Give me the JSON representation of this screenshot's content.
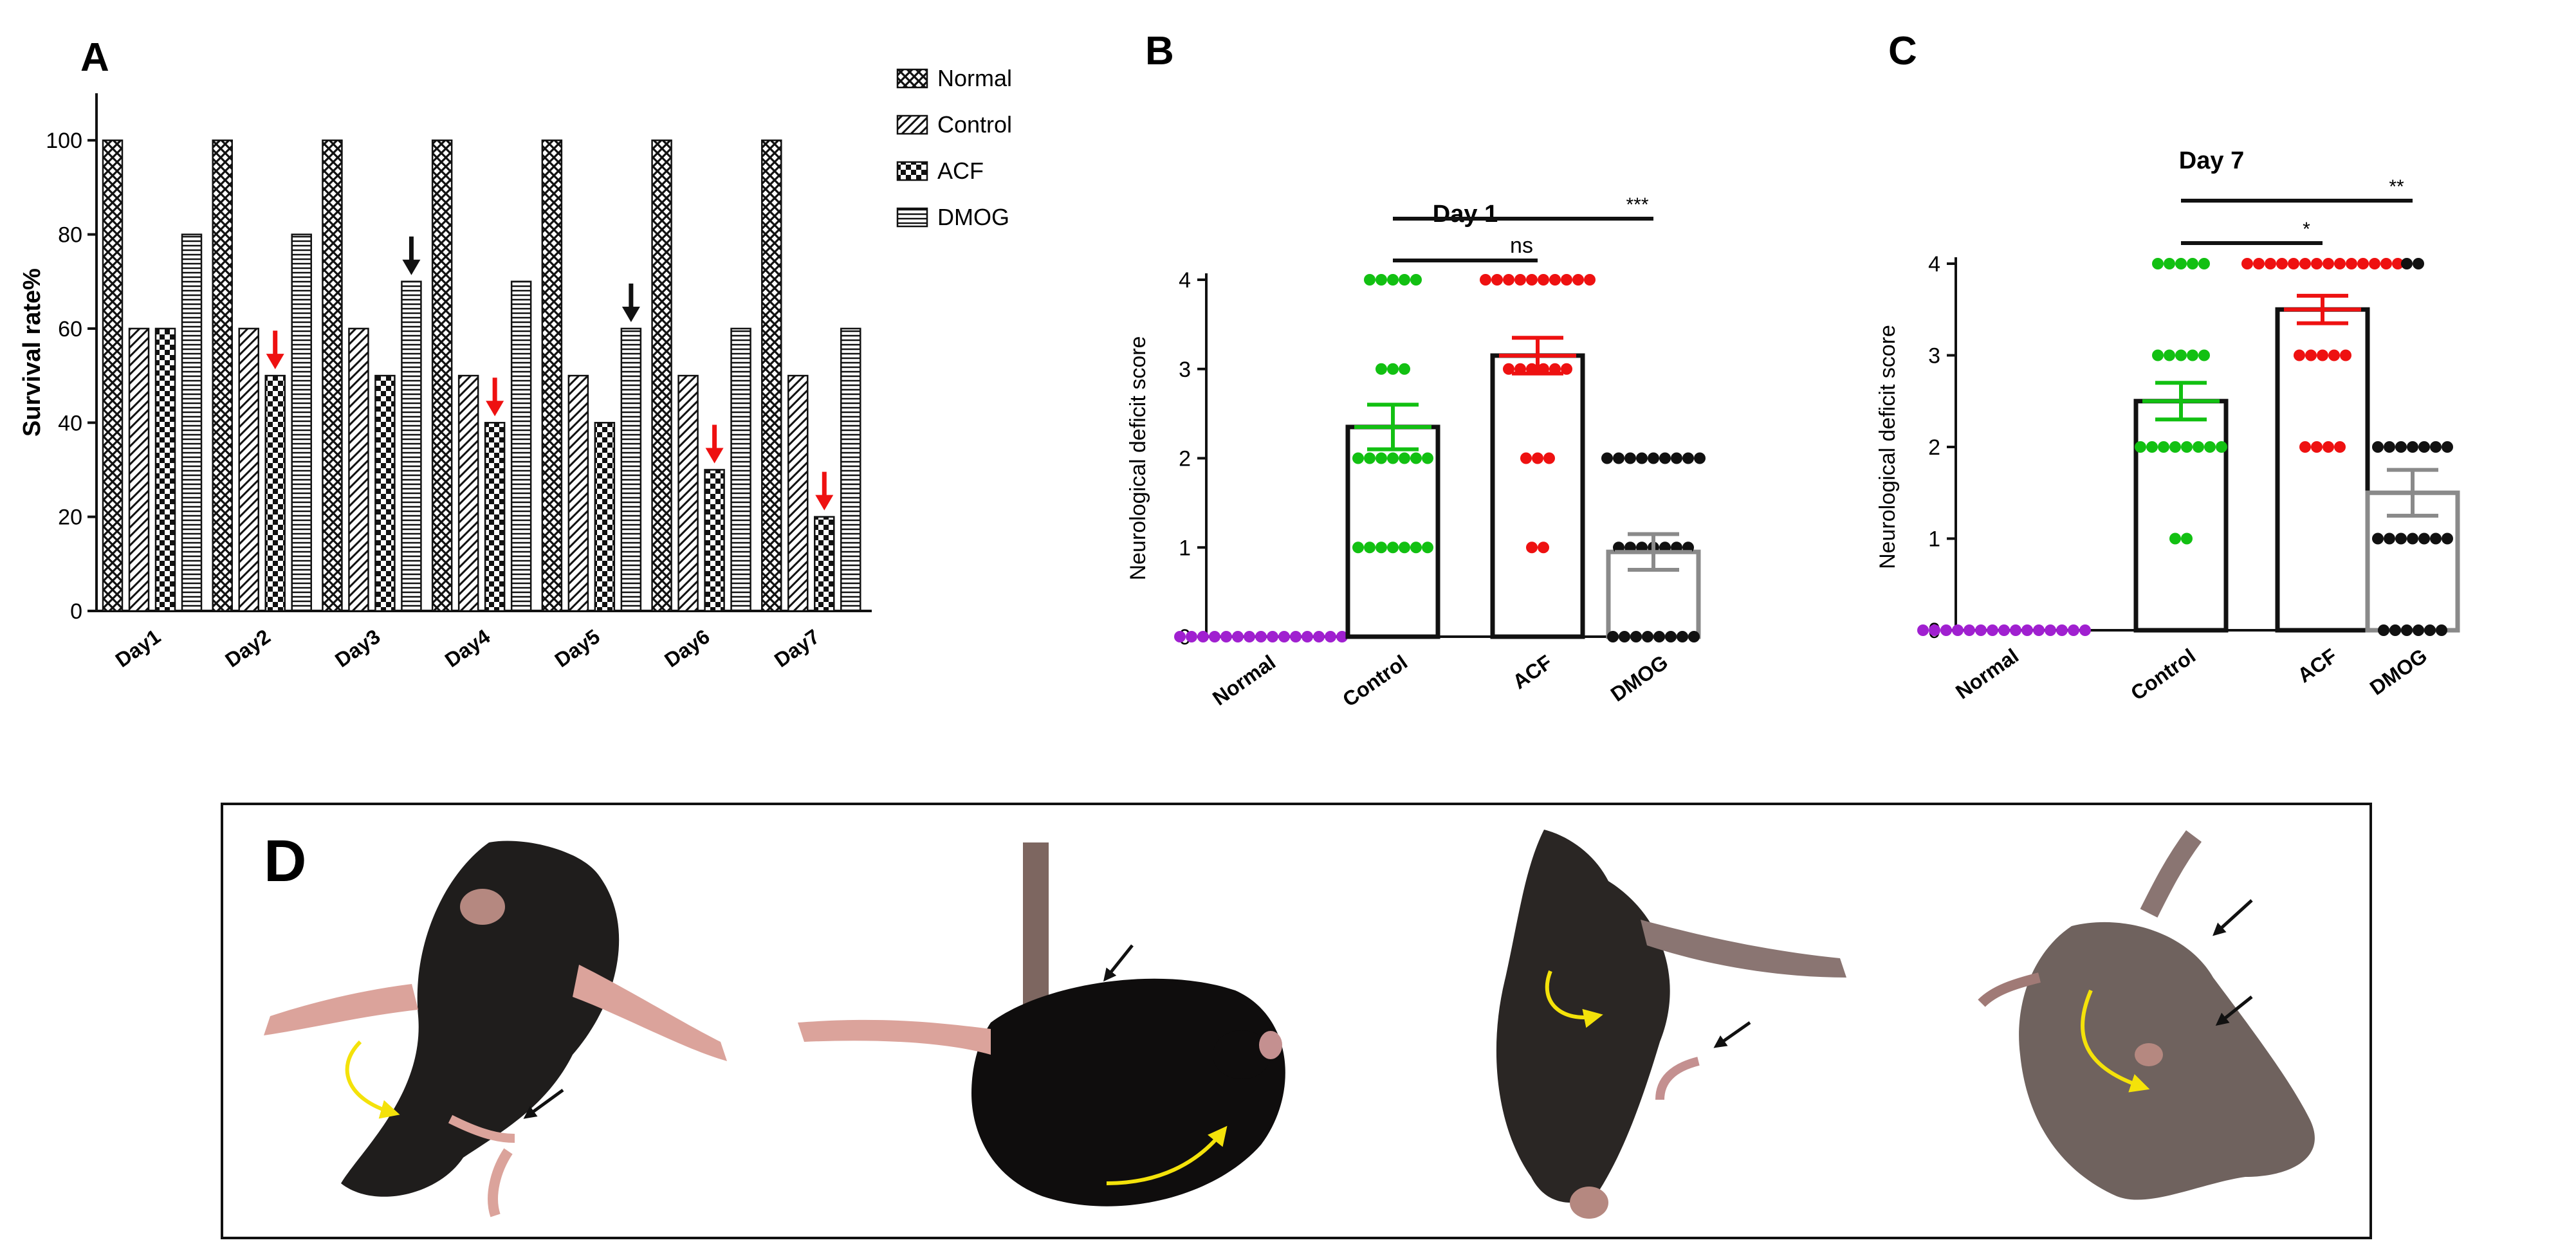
{
  "colors": {
    "normal_dots": "#a020d0",
    "control_dots": "#12c012",
    "acf_dots": "#ee1111",
    "dmog_dots": "#111111",
    "control_error": "#12c012",
    "acf_error": "#ee1111",
    "dmog_bar": "#8a8a8a",
    "red_arrow": "#ee1111",
    "black_arrow": "#111111",
    "yellow_arrow": "#f4e20a"
  },
  "panels": {
    "A": "A",
    "B": "B",
    "C": "C",
    "D": "D"
  },
  "chart_data": [
    {
      "panel": "A",
      "type": "bar",
      "title": "",
      "xlabel": "",
      "ylabel": "Survival rate%",
      "ylim": [
        0,
        110
      ],
      "yticks": [
        0,
        20,
        40,
        60,
        80,
        100
      ],
      "legend_position": "top-right",
      "categories": [
        "Day1",
        "Day2",
        "Day3",
        "Day4",
        "Day5",
        "Day6",
        "Day7"
      ],
      "series": [
        {
          "name": "Normal",
          "pattern": "crosshatch",
          "values": [
            100,
            100,
            100,
            100,
            100,
            100,
            100
          ]
        },
        {
          "name": "Control",
          "pattern": "diagonal",
          "values": [
            60,
            60,
            60,
            50,
            50,
            50,
            50
          ]
        },
        {
          "name": "ACF",
          "pattern": "checker",
          "values": [
            60,
            50,
            50,
            40,
            40,
            30,
            20
          ]
        },
        {
          "name": "DMOG",
          "pattern": "horizontal",
          "values": [
            80,
            80,
            70,
            70,
            60,
            60,
            60
          ]
        }
      ],
      "arrows": [
        {
          "day": 1,
          "series": "ACF",
          "color": "red"
        },
        {
          "day": 2,
          "series": "DMOG",
          "color": "black"
        },
        {
          "day": 3,
          "series": "ACF",
          "color": "red"
        },
        {
          "day": 4,
          "series": "DMOG",
          "color": "black"
        },
        {
          "day": 5,
          "series": "ACF",
          "color": "red"
        },
        {
          "day": 6,
          "series": "ACF",
          "color": "red"
        }
      ]
    },
    {
      "panel": "B",
      "type": "scatter",
      "title": "Day 1",
      "xlabel": "",
      "ylabel": "Neurological deficit score",
      "ylim": [
        0,
        4
      ],
      "yticks": [
        0,
        1,
        2,
        3,
        4
      ],
      "categories": [
        "Normal",
        "Control",
        "ACF",
        "DMOG"
      ],
      "means": [
        0,
        2.35,
        3.15,
        0.95
      ],
      "errors": [
        0,
        0.25,
        0.2,
        0.2
      ],
      "points": [
        [
          0,
          0,
          0,
          0,
          0,
          0,
          0,
          0,
          0,
          0,
          0,
          0,
          0,
          0,
          0
        ],
        [
          4,
          4,
          4,
          4,
          4,
          3,
          3,
          3,
          2,
          2,
          2,
          2,
          2,
          2,
          2,
          1,
          1,
          1,
          1,
          1,
          1,
          1
        ],
        [
          4,
          4,
          4,
          4,
          4,
          4,
          4,
          4,
          4,
          4,
          3,
          3,
          3,
          3,
          3,
          3,
          2,
          2,
          2,
          1,
          1
        ],
        [
          2,
          2,
          2,
          2,
          2,
          2,
          2,
          2,
          2,
          1,
          1,
          1,
          1,
          1,
          1,
          1,
          0,
          0,
          0,
          0,
          0,
          0,
          0,
          0
        ]
      ],
      "significance": [
        {
          "from": "Control",
          "to": "DMOG",
          "label": "***"
        },
        {
          "from": "Control",
          "to": "ACF",
          "label": "ns"
        }
      ]
    },
    {
      "panel": "C",
      "type": "scatter",
      "title": "Day 7",
      "xlabel": "",
      "ylabel": "Neurological deficit score",
      "ylim": [
        0,
        4
      ],
      "yticks": [
        0,
        1,
        2,
        3,
        4
      ],
      "categories": [
        "Normal",
        "Control",
        "ACF",
        "DMOG"
      ],
      "means": [
        0,
        2.5,
        3.5,
        1.5
      ],
      "errors": [
        0,
        0.2,
        0.15,
        0.25
      ],
      "points": [
        [
          0,
          0,
          0,
          0,
          0,
          0,
          0,
          0,
          0,
          0,
          0,
          0,
          0,
          0,
          0
        ],
        [
          4,
          4,
          4,
          4,
          4,
          3,
          3,
          3,
          3,
          3,
          2,
          2,
          2,
          2,
          2,
          2,
          2,
          2,
          1,
          1
        ],
        [
          4,
          4,
          4,
          4,
          4,
          4,
          4,
          4,
          4,
          4,
          4,
          4,
          4,
          4,
          3,
          3,
          3,
          3,
          3,
          2,
          2,
          2,
          2
        ],
        [
          4,
          4,
          2,
          2,
          2,
          2,
          2,
          2,
          2,
          1,
          1,
          1,
          1,
          1,
          1,
          1,
          0,
          0,
          0,
          0,
          0,
          0
        ]
      ],
      "significance": [
        {
          "from": "Control",
          "to": "DMOG",
          "label": "**"
        },
        {
          "from": "Control",
          "to": "ACF",
          "label": "*"
        }
      ]
    }
  ]
}
